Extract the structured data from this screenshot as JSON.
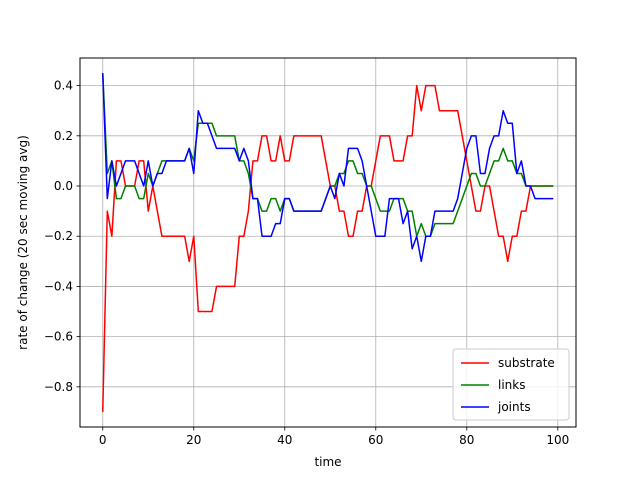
{
  "chart_data": {
    "type": "line",
    "title": "",
    "xlabel": "time",
    "ylabel": "rate of change (20 sec moving avg)",
    "xlim": [
      -5,
      104
    ],
    "ylim": [
      -0.96,
      0.51
    ],
    "xticks": [
      0,
      20,
      40,
      60,
      80,
      100
    ],
    "xtick_labels": [
      "0",
      "20",
      "40",
      "60",
      "80",
      "100"
    ],
    "yticks": [
      -0.8,
      -0.6,
      -0.4,
      -0.2,
      0.0,
      0.2,
      0.4
    ],
    "ytick_labels": [
      "−0.8",
      "−0.6",
      "−0.4",
      "−0.2",
      "0.0",
      "0.2",
      "0.4"
    ],
    "grid": true,
    "legend_position": "lower-right",
    "series": [
      {
        "name": "substrate",
        "color": "#ff0000",
        "x": [
          0,
          1,
          2,
          3,
          4,
          5,
          6,
          7,
          8,
          9,
          10,
          11,
          12,
          13,
          14,
          15,
          16,
          17,
          18,
          19,
          20,
          21,
          22,
          23,
          24,
          25,
          26,
          27,
          28,
          29,
          30,
          31,
          32,
          33,
          34,
          35,
          36,
          37,
          38,
          39,
          40,
          41,
          42,
          43,
          44,
          45,
          46,
          47,
          48,
          49,
          50,
          51,
          52,
          53,
          54,
          55,
          56,
          57,
          58,
          59,
          60,
          61,
          62,
          63,
          64,
          65,
          66,
          67,
          68,
          69,
          70,
          71,
          72,
          73,
          74,
          75,
          76,
          77,
          78,
          79,
          80,
          81,
          82,
          83,
          84,
          85,
          86,
          87,
          88,
          89,
          90,
          91,
          92,
          93,
          94,
          95,
          96,
          97,
          98,
          99
        ],
        "values": [
          -0.9,
          -0.1,
          -0.2,
          0.1,
          0.1,
          0.0,
          0.0,
          0.0,
          0.1,
          0.1,
          -0.1,
          0.0,
          -0.1,
          -0.2,
          -0.2,
          -0.2,
          -0.2,
          -0.2,
          -0.2,
          -0.3,
          -0.2,
          -0.5,
          -0.5,
          -0.5,
          -0.5,
          -0.4,
          -0.4,
          -0.4,
          -0.4,
          -0.4,
          -0.2,
          -0.2,
          -0.1,
          0.1,
          0.1,
          0.2,
          0.2,
          0.1,
          0.1,
          0.2,
          0.1,
          0.1,
          0.2,
          0.2,
          0.2,
          0.2,
          0.2,
          0.2,
          0.2,
          0.1,
          0.0,
          0.0,
          -0.1,
          -0.1,
          -0.2,
          -0.2,
          -0.1,
          -0.1,
          0.0,
          0.0,
          0.1,
          0.2,
          0.2,
          0.2,
          0.1,
          0.1,
          0.1,
          0.2,
          0.2,
          0.4,
          0.3,
          0.4,
          0.4,
          0.4,
          0.3,
          0.3,
          0.3,
          0.3,
          0.3,
          0.2,
          0.1,
          0.0,
          -0.1,
          -0.1,
          0.0,
          0.0,
          -0.1,
          -0.2,
          -0.2,
          -0.3,
          -0.2,
          -0.2,
          -0.1,
          -0.1,
          0.0,
          0.0,
          0.0,
          0.0,
          0.0,
          0.0
        ]
      },
      {
        "name": "links",
        "color": "#008000",
        "x": [
          0,
          1,
          2,
          3,
          4,
          5,
          6,
          7,
          8,
          9,
          10,
          11,
          12,
          13,
          14,
          15,
          16,
          17,
          18,
          19,
          20,
          21,
          22,
          23,
          24,
          25,
          26,
          27,
          28,
          29,
          30,
          31,
          32,
          33,
          34,
          35,
          36,
          37,
          38,
          39,
          40,
          41,
          42,
          43,
          44,
          45,
          46,
          47,
          48,
          49,
          50,
          51,
          52,
          53,
          54,
          55,
          56,
          57,
          58,
          59,
          60,
          61,
          62,
          63,
          64,
          65,
          66,
          67,
          68,
          69,
          70,
          71,
          72,
          73,
          74,
          75,
          76,
          77,
          78,
          79,
          80,
          81,
          82,
          83,
          84,
          85,
          86,
          87,
          88,
          89,
          90,
          91,
          92,
          93,
          94,
          95,
          96,
          97,
          98,
          99
        ],
        "values": [
          0.45,
          0.05,
          0.1,
          -0.05,
          -0.05,
          0.0,
          0.0,
          0.0,
          -0.05,
          -0.05,
          0.05,
          0.0,
          0.05,
          0.1,
          0.1,
          0.1,
          0.1,
          0.1,
          0.1,
          0.15,
          0.1,
          0.25,
          0.25,
          0.25,
          0.25,
          0.2,
          0.2,
          0.2,
          0.2,
          0.2,
          0.1,
          0.1,
          0.05,
          -0.05,
          -0.05,
          -0.1,
          -0.1,
          -0.05,
          -0.05,
          -0.1,
          -0.05,
          -0.05,
          -0.1,
          -0.1,
          -0.1,
          -0.1,
          -0.1,
          -0.1,
          -0.1,
          -0.05,
          0.0,
          0.0,
          0.05,
          0.05,
          0.1,
          0.1,
          0.05,
          0.05,
          0.0,
          0.0,
          -0.05,
          -0.1,
          -0.1,
          -0.1,
          -0.05,
          -0.05,
          -0.05,
          -0.1,
          -0.1,
          -0.2,
          -0.15,
          -0.2,
          -0.2,
          -0.15,
          -0.15,
          -0.15,
          -0.15,
          -0.15,
          -0.1,
          -0.05,
          0.0,
          0.05,
          0.05,
          0.0,
          0.0,
          0.05,
          0.1,
          0.1,
          0.15,
          0.1,
          0.1,
          0.05,
          0.05,
          0.0,
          0.0,
          0.0,
          0.0,
          0.0,
          0.0,
          0.0
        ]
      },
      {
        "name": "joints",
        "color": "#0000ff",
        "x": [
          0,
          1,
          2,
          3,
          4,
          5,
          6,
          7,
          8,
          9,
          10,
          11,
          12,
          13,
          14,
          15,
          16,
          17,
          18,
          19,
          20,
          21,
          22,
          23,
          24,
          25,
          26,
          27,
          28,
          29,
          30,
          31,
          32,
          33,
          34,
          35,
          36,
          37,
          38,
          39,
          40,
          41,
          42,
          43,
          44,
          45,
          46,
          47,
          48,
          49,
          50,
          51,
          52,
          53,
          54,
          55,
          56,
          57,
          58,
          59,
          60,
          61,
          62,
          63,
          64,
          65,
          66,
          67,
          68,
          69,
          70,
          71,
          72,
          73,
          74,
          75,
          76,
          77,
          78,
          79,
          80,
          81,
          82,
          83,
          84,
          85,
          86,
          87,
          88,
          89,
          90,
          91,
          92,
          93,
          94,
          95,
          96,
          97,
          98,
          99
        ],
        "values": [
          0.45,
          -0.05,
          0.1,
          0.0,
          0.05,
          0.1,
          0.1,
          0.1,
          0.05,
          0.0,
          0.1,
          0.0,
          0.05,
          0.05,
          0.1,
          0.1,
          0.1,
          0.1,
          0.1,
          0.15,
          0.05,
          0.3,
          0.25,
          0.25,
          0.2,
          0.15,
          0.15,
          0.15,
          0.15,
          0.15,
          0.1,
          0.15,
          0.1,
          -0.05,
          -0.05,
          -0.2,
          -0.2,
          -0.2,
          -0.15,
          -0.15,
          -0.05,
          -0.05,
          -0.1,
          -0.1,
          -0.1,
          -0.1,
          -0.1,
          -0.1,
          -0.1,
          -0.05,
          0.0,
          -0.05,
          0.05,
          0.0,
          0.15,
          0.15,
          0.15,
          0.1,
          0.0,
          -0.1,
          -0.2,
          -0.2,
          -0.2,
          -0.05,
          -0.05,
          -0.05,
          -0.15,
          -0.1,
          -0.25,
          -0.2,
          -0.3,
          -0.2,
          -0.2,
          -0.1,
          -0.1,
          -0.1,
          -0.1,
          -0.1,
          -0.05,
          0.05,
          0.15,
          0.2,
          0.2,
          0.05,
          0.05,
          0.15,
          0.2,
          0.2,
          0.3,
          0.25,
          0.25,
          0.05,
          0.1,
          0.0,
          0.0,
          -0.05,
          -0.05,
          -0.05,
          -0.05,
          -0.05
        ]
      }
    ]
  }
}
